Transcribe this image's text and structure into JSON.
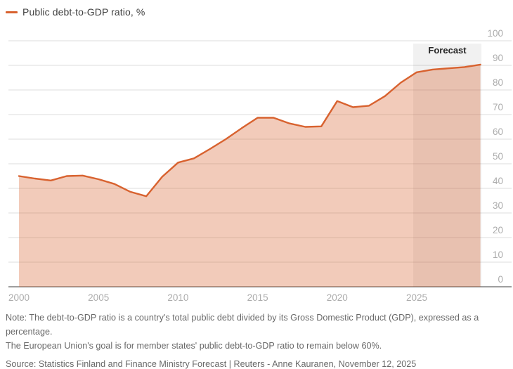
{
  "legend": {
    "label": "Public debt-to-GDP ratio, %",
    "color": "#d8622f"
  },
  "chart_data": {
    "type": "area",
    "title": "Public debt-to-GDP ratio, %",
    "xlabel": "",
    "ylabel": "%",
    "ylim": [
      0,
      100
    ],
    "grid": true,
    "legend_position": "top-left",
    "x": [
      2000,
      2001,
      2002,
      2003,
      2004,
      2005,
      2006,
      2007,
      2008,
      2009,
      2010,
      2011,
      2012,
      2013,
      2014,
      2015,
      2016,
      2017,
      2018,
      2019,
      2020,
      2021,
      2022,
      2023,
      2024,
      2025,
      2026,
      2027,
      2028,
      2029
    ],
    "series": [
      {
        "name": "Public debt-to-GDP ratio, %",
        "values": [
          45.0,
          44.0,
          43.2,
          45.0,
          45.2,
          43.7,
          41.8,
          38.6,
          36.8,
          44.7,
          50.5,
          52.2,
          56.0,
          60.0,
          64.5,
          68.7,
          68.7,
          66.4,
          65.0,
          65.2,
          75.5,
          73.0,
          73.6,
          77.5,
          83.0,
          87.2,
          88.3,
          88.8,
          89.3,
          90.3
        ]
      }
    ],
    "x_ticks": [
      2000,
      2005,
      2010,
      2015,
      2020,
      2025
    ],
    "y_ticks": [
      0,
      10,
      20,
      30,
      40,
      50,
      60,
      70,
      80,
      90,
      100
    ],
    "forecast": {
      "label": "Forecast",
      "start": 2025,
      "end": 2029
    },
    "colors": {
      "line": "#d8622f",
      "fill": "rgba(216,98,47,0.33)",
      "forecast_band": "rgba(15,15,15,0.06)",
      "grid": "#dddddd",
      "axis": "#9e9e9e",
      "tick_label": "#acacac",
      "forecast_label": "#262626"
    }
  },
  "notes": {
    "note_line1": "Note: The debt-to-GDP ratio is a country's total public debt divided by its Gross Domestic Product (GDP), expressed as a percentage.",
    "note_line2": "The European Union's goal is for member states' public debt-to-GDP ratio to remain below 60%.",
    "source": "Source: Statistics Finland and Finance Ministry Forecast | Reuters - Anne Kauranen, November 12, 2025"
  }
}
